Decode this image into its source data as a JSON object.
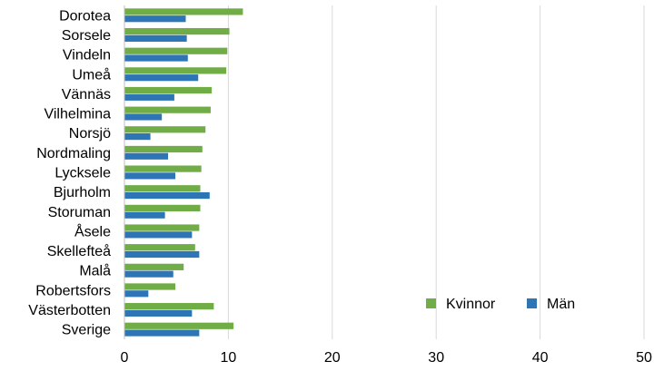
{
  "chart_data": {
    "type": "bar",
    "orientation": "horizontal",
    "categories": [
      "Dorotea",
      "Sorsele",
      "Vindeln",
      "Umeå",
      "Vännäs",
      "Vilhelmina",
      "Norsjö",
      "Nordmaling",
      "Lycksele",
      "Bjurholm",
      "Storuman",
      "Åsele",
      "Skellefteå",
      "Malå",
      "Robertsfors",
      "Västerbotten",
      "Sverige"
    ],
    "series": [
      {
        "name": "Kvinnor",
        "color": "#70ad47",
        "values": [
          11.4,
          10.1,
          9.9,
          9.8,
          8.4,
          8.3,
          7.8,
          7.5,
          7.4,
          7.3,
          7.3,
          7.2,
          6.8,
          5.7,
          4.9,
          8.6,
          10.5
        ]
      },
      {
        "name": "Män",
        "color": "#2e75b6",
        "values": [
          5.9,
          6.0,
          6.1,
          7.1,
          4.8,
          3.6,
          2.5,
          4.2,
          4.9,
          8.2,
          3.9,
          6.5,
          7.2,
          4.7,
          2.3,
          6.5,
          7.2
        ]
      }
    ],
    "xlim": [
      0,
      50
    ],
    "xticks": [
      0,
      10,
      20,
      30,
      40,
      50
    ],
    "grid": true,
    "legend_placement": "bottom-right",
    "title": "",
    "xlabel": "",
    "ylabel": ""
  }
}
